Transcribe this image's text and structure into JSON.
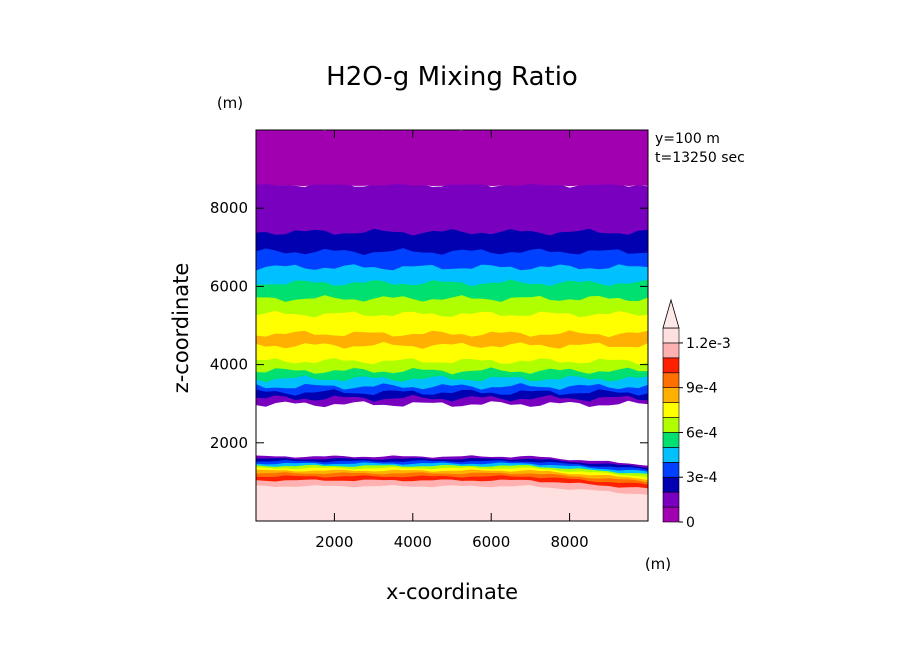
{
  "chart_data": {
    "type": "heatmap",
    "title": "H2O-g Mixing Ratio",
    "xlabel": "x-coordinate",
    "ylabel": "z-coordinate",
    "x_unit": "(m)",
    "y_unit": "(m)",
    "info_lines": [
      "y=100 m",
      "t=13250 sec"
    ],
    "xlim": [
      0,
      10000
    ],
    "ylim": [
      0,
      10000
    ],
    "x_ticks": [
      2000,
      4000,
      6000,
      8000
    ],
    "y_ticks": [
      2000,
      4000,
      6000,
      8000
    ],
    "colorbar": {
      "levels": [
        0,
        0.0001,
        0.0002,
        0.0003,
        0.0004,
        0.0005,
        0.0006,
        0.0007,
        0.0008,
        0.0009,
        0.001,
        0.0011,
        0.0012
      ],
      "labels": [
        {
          "value": 0,
          "text": "0"
        },
        {
          "value": 0.0003,
          "text": "3e-4"
        },
        {
          "value": 0.0006,
          "text": "6e-4"
        },
        {
          "value": 0.0009,
          "text": "9e-4"
        },
        {
          "value": 0.0012,
          "text": "1.2e-3"
        }
      ],
      "colors": [
        "#a000b0",
        "#7a00c0",
        "#0000b0",
        "#0040ff",
        "#00c0ff",
        "#00e070",
        "#b0ff00",
        "#ffff00",
        "#ffb000",
        "#ff7000",
        "#ff2000",
        "#ffb0b0",
        "#ffe0e0"
      ],
      "extend_max": true
    },
    "bands": [
      {
        "z0": 0,
        "z1": 900,
        "level": 12
      },
      {
        "z0": 900,
        "z1": 1050,
        "level": 11
      },
      {
        "z0": 1050,
        "z1": 1150,
        "level": 10
      },
      {
        "z0": 1150,
        "z1": 1230,
        "level": 9
      },
      {
        "z0": 1230,
        "z1": 1300,
        "level": 8
      },
      {
        "z0": 1300,
        "z1": 1360,
        "level": 7
      },
      {
        "z0": 1360,
        "z1": 1420,
        "level": 6
      },
      {
        "z0": 1420,
        "z1": 1480,
        "level": 4
      },
      {
        "z0": 1480,
        "z1": 1540,
        "level": 3
      },
      {
        "z0": 1540,
        "z1": 1600,
        "level": 2
      },
      {
        "z0": 1600,
        "z1": 1660,
        "level": 1
      },
      {
        "z0": 1660,
        "z1": 3000,
        "level": -1
      },
      {
        "z0": 3000,
        "z1": 3150,
        "level": 1
      },
      {
        "z0": 3150,
        "z1": 3300,
        "level": 2
      },
      {
        "z0": 3300,
        "z1": 3450,
        "level": 3
      },
      {
        "z0": 3450,
        "z1": 3650,
        "level": 4
      },
      {
        "z0": 3650,
        "z1": 3850,
        "level": 5
      },
      {
        "z0": 3850,
        "z1": 4100,
        "level": 6
      },
      {
        "z0": 4100,
        "z1": 4500,
        "level": 7
      },
      {
        "z0": 4500,
        "z1": 4800,
        "level": 8
      },
      {
        "z0": 4800,
        "z1": 5300,
        "level": 7
      },
      {
        "z0": 5300,
        "z1": 5700,
        "level": 6
      },
      {
        "z0": 5700,
        "z1": 6100,
        "level": 5
      },
      {
        "z0": 6100,
        "z1": 6500,
        "level": 4
      },
      {
        "z0": 6500,
        "z1": 6900,
        "level": 3
      },
      {
        "z0": 6900,
        "z1": 7400,
        "level": 2
      },
      {
        "z0": 7400,
        "z1": 7900,
        "level": 1
      },
      {
        "z0": 7900,
        "z1": 8600,
        "level": 1
      },
      {
        "z0": 8600,
        "z1": 10000,
        "level": 0
      }
    ]
  }
}
